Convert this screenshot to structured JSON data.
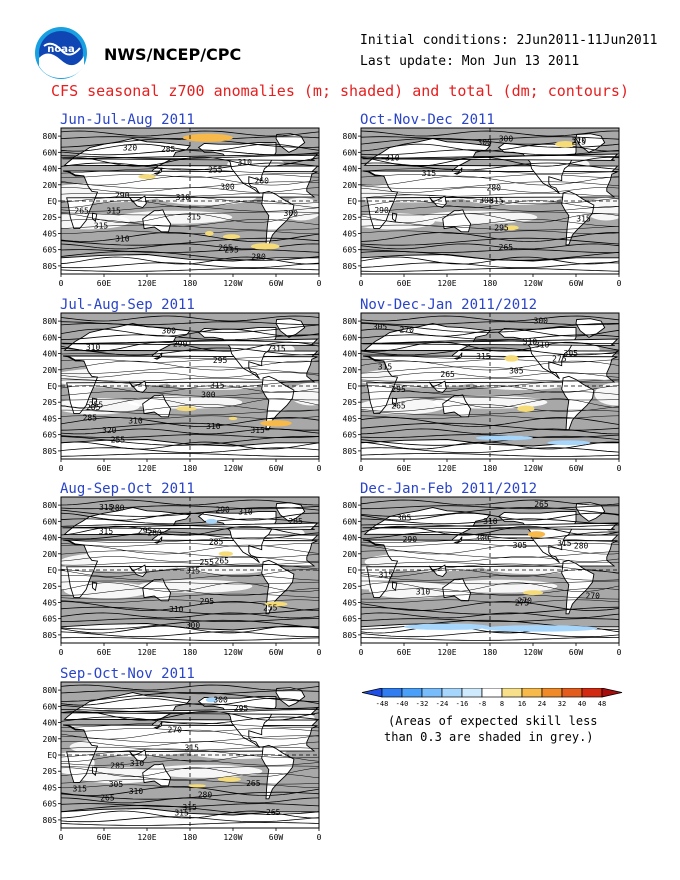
{
  "header": {
    "org": "NWS/NCEP/CPC",
    "initial_conditions": "Initial conditions: 2Jun2011-11Jun2011",
    "last_update": "Last update: Mon Jun 13 2011",
    "title": "CFS seasonal z700 anomalies (m; shaded) and total (dm; contours)",
    "logo_text": "noaa"
  },
  "footer_note": {
    "line1": "(Areas of expected skill less",
    "line2": "than 0.3 are shaded in grey.)"
  },
  "colors": {
    "title_red": "#e61e1e",
    "panel_title_blue": "#2a44c8",
    "land_white": "#ffffff",
    "ocean_grey": "#a8a8a8",
    "low_skill_grey": "#c8c8c8"
  },
  "chart_data": [
    {
      "type": "map",
      "title": "Jun-Jul-Aug 2011",
      "x_tick_labels": [
        "0",
        "60E",
        "120E",
        "180",
        "120W",
        "60W",
        "0"
      ],
      "y_tick_labels": [
        "80N",
        "60N",
        "40N",
        "20N",
        "EQ",
        "20S",
        "40S",
        "60S",
        "80S"
      ],
      "contour_labels": [
        "290",
        "300",
        "310",
        "315",
        "320",
        "310",
        "315",
        "310",
        "315",
        "300",
        "295",
        "285",
        "265",
        "260",
        "280",
        "255",
        "265"
      ],
      "anomaly_areas": [
        "positive anomalies (8-24 m) near Arctic / 180",
        "positive anomalies (8-16 m) near 30N 120W",
        "positive anomalies (8-16 m) near 40S 120W",
        "positive anomalies (8-24 m) near 60S 60W"
      ]
    },
    {
      "type": "map",
      "title": "Oct-Nov-Dec 2011",
      "x_tick_labels": [
        "0",
        "60E",
        "120E",
        "180",
        "120W",
        "60W",
        "0"
      ],
      "y_tick_labels": [
        "80N",
        "60N",
        "40N",
        "20N",
        "EQ",
        "20S",
        "40S",
        "60S",
        "80S"
      ],
      "contour_labels": [
        "275",
        "290",
        "300",
        "305",
        "310",
        "315",
        "315",
        "310",
        "295",
        "300",
        "315",
        "280",
        "265"
      ],
      "anomaly_areas": [
        "positive anomalies (8-16 m) near 30S 140W"
      ]
    },
    {
      "type": "map",
      "title": "Jul-Aug-Sep 2011",
      "x_tick_labels": [
        "0",
        "60E",
        "120E",
        "180",
        "120W",
        "60W",
        "0"
      ],
      "y_tick_labels": [
        "80N",
        "60N",
        "40N",
        "20N",
        "EQ",
        "20S",
        "40S",
        "60S",
        "80S"
      ],
      "contour_labels": [
        "290",
        "300",
        "310",
        "310",
        "315",
        "320",
        "315",
        "310",
        "315",
        "300",
        "295",
        "285",
        "265",
        "255",
        "255"
      ],
      "anomaly_areas": [
        "positive anomalies (8-16 m) near 30S 180",
        "positive anomalies (8-24 m) near 40S 60W"
      ]
    },
    {
      "type": "map",
      "title": "Nov-Dec-Jan 2011/2012",
      "x_tick_labels": [
        "0",
        "60E",
        "120E",
        "180",
        "120W",
        "60W",
        "0"
      ],
      "y_tick_labels": [
        "80N",
        "60N",
        "40N",
        "20N",
        "EQ",
        "20S",
        "40S",
        "60S",
        "80S"
      ],
      "contour_labels": [
        "275",
        "305",
        "305",
        "310",
        "315",
        "310",
        "300",
        "295",
        "315",
        "305",
        "270",
        "265",
        "265"
      ],
      "anomaly_areas": [
        "positive anomalies (8-16 m) near 30N 150W",
        "positive anomalies (8-16 m) near 25S 130W",
        "negative anomalies (-8 to -16 m) near 60S"
      ]
    },
    {
      "type": "map",
      "title": "Aug-Sep-Oct 2011",
      "x_tick_labels": [
        "0",
        "60E",
        "120E",
        "180",
        "120W",
        "60W",
        "0"
      ],
      "y_tick_labels": [
        "80N",
        "60N",
        "40N",
        "20N",
        "EQ",
        "20S",
        "40S",
        "60S",
        "80S"
      ],
      "contour_labels": [
        "285",
        "280",
        "285",
        "295",
        "300",
        "310",
        "315",
        "315",
        "315",
        "310",
        "290",
        "295",
        "280",
        "265",
        "255",
        "255"
      ],
      "anomaly_areas": [
        "negative anomalies (-8 to -16 m) near 60N 150W",
        "positive anomalies (8-16 m) near 40S 60W"
      ]
    },
    {
      "type": "map",
      "title": "Dec-Jan-Feb 2011/2012",
      "x_tick_labels": [
        "0",
        "60E",
        "120E",
        "180",
        "120W",
        "60W",
        "0"
      ],
      "y_tick_labels": [
        "80N",
        "60N",
        "40N",
        "20N",
        "EQ",
        "20S",
        "40S",
        "60S",
        "80S"
      ],
      "contour_labels": [
        "270",
        "275",
        "280",
        "290",
        "305",
        "310",
        "315",
        "310",
        "305",
        "270",
        "265",
        "315",
        "300"
      ],
      "anomaly_areas": [
        "positive anomalies (8-16 m) near 40N 120W",
        "positive anomalies (8-16 m) near 30S 120W",
        "negative anomalies (-8 to -16 m) around 60-80S"
      ]
    },
    {
      "type": "map",
      "title": "Sep-Oct-Nov 2011",
      "x_tick_labels": [
        "0",
        "60E",
        "120E",
        "180",
        "120W",
        "60W",
        "0"
      ],
      "y_tick_labels": [
        "80N",
        "60N",
        "40N",
        "20N",
        "EQ",
        "20S",
        "40S",
        "60S",
        "80S"
      ],
      "contour_labels": [
        "285",
        "265",
        "295",
        "305",
        "310",
        "315",
        "315",
        "315",
        "310",
        "315",
        "300",
        "280",
        "270",
        "265",
        "265"
      ],
      "anomaly_areas": [
        "negative anomalies (-8 to -16 m) near 70N 150W",
        "positive anomalies (8-16 m) near 30S 120W"
      ]
    },
    {
      "type": "colorbar",
      "tick_labels": [
        "-48",
        "-40",
        "-32",
        "-24",
        "-16",
        "-8",
        "8",
        "16",
        "24",
        "32",
        "40",
        "48"
      ],
      "colors": [
        "#1f4fe6",
        "#2f7df0",
        "#4aa0f8",
        "#78bcfb",
        "#a6d6fc",
        "#cfe9fd",
        "#ffffff",
        "#f8e08a",
        "#f6b94a",
        "#f08a28",
        "#e45c1c",
        "#d22a12",
        "#a80d0d"
      ]
    }
  ]
}
